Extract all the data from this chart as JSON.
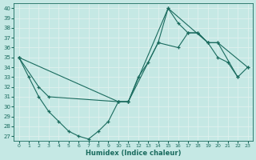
{
  "xlabel": "Humidex (Indice chaleur)",
  "bg_color": "#c5e8e4",
  "grid_color": "#e0f0ee",
  "line_color": "#1a6b5e",
  "xlim": [
    -0.5,
    23.5
  ],
  "ylim": [
    26.5,
    40.5
  ],
  "yticks": [
    27,
    28,
    29,
    30,
    31,
    32,
    33,
    34,
    35,
    36,
    37,
    38,
    39,
    40
  ],
  "xticks": [
    0,
    1,
    2,
    3,
    4,
    5,
    6,
    7,
    8,
    9,
    10,
    11,
    12,
    13,
    14,
    15,
    16,
    17,
    18,
    19,
    20,
    21,
    22,
    23
  ],
  "line1_x": [
    0,
    1,
    2,
    3,
    4,
    5,
    6,
    7,
    8,
    9,
    10,
    11,
    12,
    13,
    14,
    15,
    16,
    17,
    18,
    19,
    20,
    21,
    22
  ],
  "line1_y": [
    35.0,
    33.0,
    31.0,
    29.5,
    28.5,
    27.5,
    27.0,
    26.7,
    27.5,
    28.5,
    30.5,
    30.5,
    33.0,
    34.5,
    36.5,
    40.0,
    38.5,
    37.5,
    37.5,
    36.5,
    35.0,
    34.5,
    33.0
  ],
  "line2_x": [
    0,
    2,
    3,
    10,
    11,
    14,
    16,
    17,
    18,
    19,
    20,
    22,
    23
  ],
  "line2_y": [
    35.0,
    32.0,
    31.0,
    30.5,
    30.5,
    36.5,
    36.0,
    37.5,
    37.5,
    36.5,
    36.5,
    33.0,
    34.0
  ],
  "line3_x": [
    0,
    10,
    11,
    15,
    19,
    20,
    23
  ],
  "line3_y": [
    35.0,
    30.5,
    30.5,
    40.0,
    36.5,
    36.5,
    34.0
  ]
}
